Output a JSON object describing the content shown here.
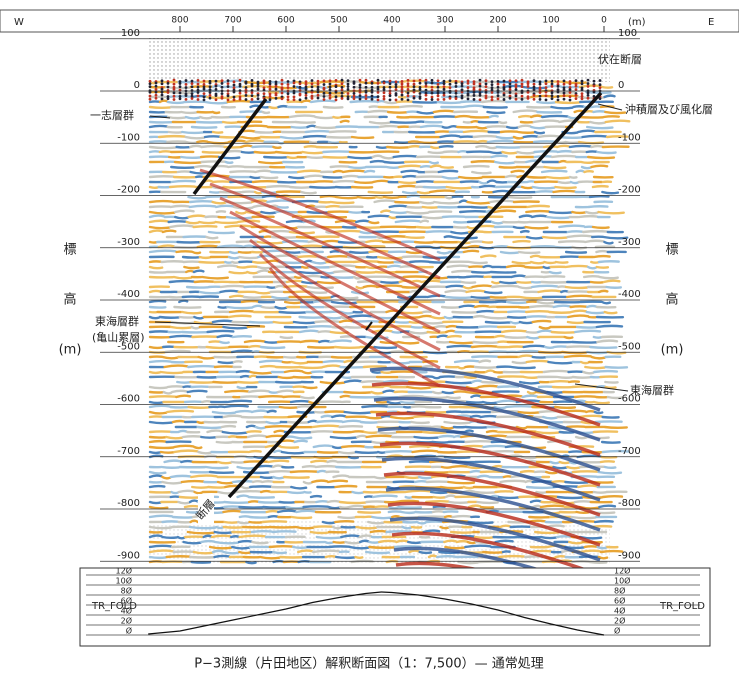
{
  "top_axis": {
    "left": "W",
    "right": "E",
    "unit": "(m)",
    "ticks": [
      800,
      700,
      600,
      500,
      400,
      300,
      200,
      100,
      0
    ]
  },
  "elevation_ticks": [
    100,
    0,
    -100,
    -200,
    -300,
    -400,
    -500,
    -600,
    -700,
    -800,
    -900
  ],
  "left_label": [
    "標",
    "高",
    "(m)"
  ],
  "right_label": [
    "標",
    "高",
    "(m)"
  ],
  "annotations": {
    "buried_fault": "伏在断層",
    "alluvium": "沖積層及び風化層",
    "ichishi": "一志層群",
    "tokai_left": "東海層群",
    "kameyama": "(亀山累層)",
    "tokai_right": "東海層群",
    "fault": "断層"
  },
  "fold_panel": {
    "label_left": "TR_FOLD",
    "label_right": "TR_FOLD",
    "ticks": [
      {
        "value": 120,
        "label": "12Ø"
      },
      {
        "value": 100,
        "label": "10Ø"
      },
      {
        "value": 80,
        "label": "8Ø"
      },
      {
        "value": 60,
        "label": "6Ø"
      },
      {
        "value": 40,
        "label": "4Ø"
      },
      {
        "value": 20,
        "label": "2Ø"
      },
      {
        "value": 0,
        "label": "Ø"
      }
    ],
    "x": [
      860,
      800,
      700,
      600,
      550,
      500,
      450,
      420,
      400,
      350,
      300,
      250,
      200,
      150,
      100,
      50,
      0
    ],
    "values": [
      2,
      8,
      30,
      52,
      65,
      75,
      83,
      86,
      85,
      80,
      72,
      62,
      50,
      35,
      22,
      10,
      0
    ]
  },
  "caption": "P−3測線（片田地区）解釈断面図（1：7,500）— 通常処理"
}
